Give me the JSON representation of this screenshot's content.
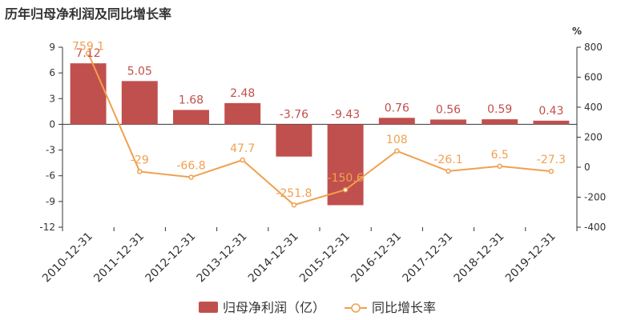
{
  "title": "历年归母净利润及同比增长率",
  "chart_data": {
    "type": "bar",
    "categories": [
      "2010-12-31",
      "2011-12-31",
      "2012-12-31",
      "2013-12-31",
      "2014-12-31",
      "2015-12-31",
      "2016-12-31",
      "2017-12-31",
      "2018-12-31",
      "2019-12-31"
    ],
    "series": [
      {
        "name": "归母净利润（亿）",
        "type": "bar",
        "axis": "left",
        "color": "#c0504d",
        "values": [
          7.12,
          5.05,
          1.68,
          2.48,
          -3.76,
          -9.43,
          0.76,
          0.56,
          0.59,
          0.43
        ]
      },
      {
        "name": "同比增长率",
        "type": "line",
        "axis": "right",
        "color": "#f0a050",
        "values": [
          759.1,
          -29,
          -66.8,
          47.7,
          -251.8,
          -150.6,
          108,
          -26.1,
          6.5,
          -27.3
        ]
      }
    ],
    "left_axis": {
      "min": -12,
      "max": 9,
      "ticks": [
        9,
        6,
        3,
        0,
        -3,
        -6,
        -9,
        -12
      ]
    },
    "right_axis": {
      "unit": "%",
      "min": -400,
      "max": 800,
      "ticks": [
        800,
        600,
        400,
        200,
        0,
        -200,
        -400
      ]
    },
    "legend_position": "bottom-center"
  }
}
